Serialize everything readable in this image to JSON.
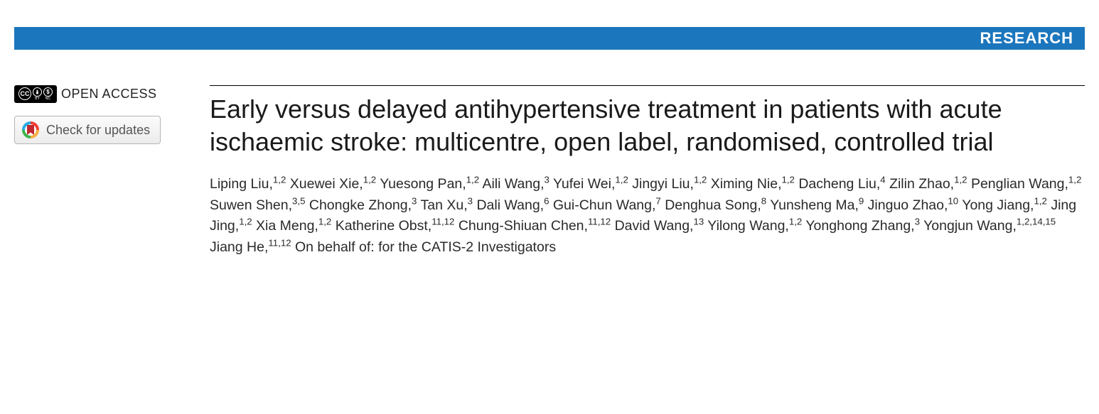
{
  "header": {
    "section_label": "RESEARCH",
    "bar_color": "#1b76bd"
  },
  "badges": {
    "open_access_label": "OPEN ACCESS",
    "cc_text": "CC",
    "by_text": "BY",
    "nc_text": "NC",
    "check_updates_label": "Check for updates"
  },
  "article": {
    "title": "Early versus delayed antihypertensive treatment in patients with acute ischaemic stroke: multicentre, open label, randomised, controlled trial"
  },
  "authors": [
    {
      "name": "Liping Liu",
      "aff": "1,2"
    },
    {
      "name": "Xuewei Xie",
      "aff": "1,2"
    },
    {
      "name": "Yuesong Pan",
      "aff": "1,2"
    },
    {
      "name": "Aili Wang",
      "aff": "3"
    },
    {
      "name": "Yufei Wei",
      "aff": "1,2"
    },
    {
      "name": "Jingyi Liu",
      "aff": "1,2"
    },
    {
      "name": "Ximing Nie",
      "aff": "1,2"
    },
    {
      "name": "Dacheng Liu",
      "aff": "4"
    },
    {
      "name": "Zilin Zhao",
      "aff": "1,2"
    },
    {
      "name": "Penglian Wang",
      "aff": "1,2"
    },
    {
      "name": "Suwen Shen",
      "aff": "3,5"
    },
    {
      "name": "Chongke Zhong",
      "aff": "3"
    },
    {
      "name": "Tan Xu",
      "aff": "3"
    },
    {
      "name": "Dali Wang",
      "aff": "6"
    },
    {
      "name": "Gui-Chun Wang",
      "aff": "7"
    },
    {
      "name": "Denghua Song",
      "aff": "8"
    },
    {
      "name": "Yunsheng Ma",
      "aff": "9"
    },
    {
      "name": "Jinguo Zhao",
      "aff": "10"
    },
    {
      "name": "Yong Jiang",
      "aff": "1,2"
    },
    {
      "name": "Jing Jing",
      "aff": "1,2"
    },
    {
      "name": "Xia Meng",
      "aff": "1,2"
    },
    {
      "name": "Katherine Obst",
      "aff": "11,12"
    },
    {
      "name": "Chung-Shiuan Chen",
      "aff": "11,12"
    },
    {
      "name": "David Wang",
      "aff": "13"
    },
    {
      "name": "Yilong Wang",
      "aff": "1,2"
    },
    {
      "name": "Yonghong Zhang",
      "aff": "3"
    },
    {
      "name": "Yongjun Wang",
      "aff": "1,2,14,15"
    },
    {
      "name": "Jiang He",
      "aff": "11,12"
    }
  ],
  "authors_suffix": "On behalf of: for the CATIS-2 Investigators"
}
